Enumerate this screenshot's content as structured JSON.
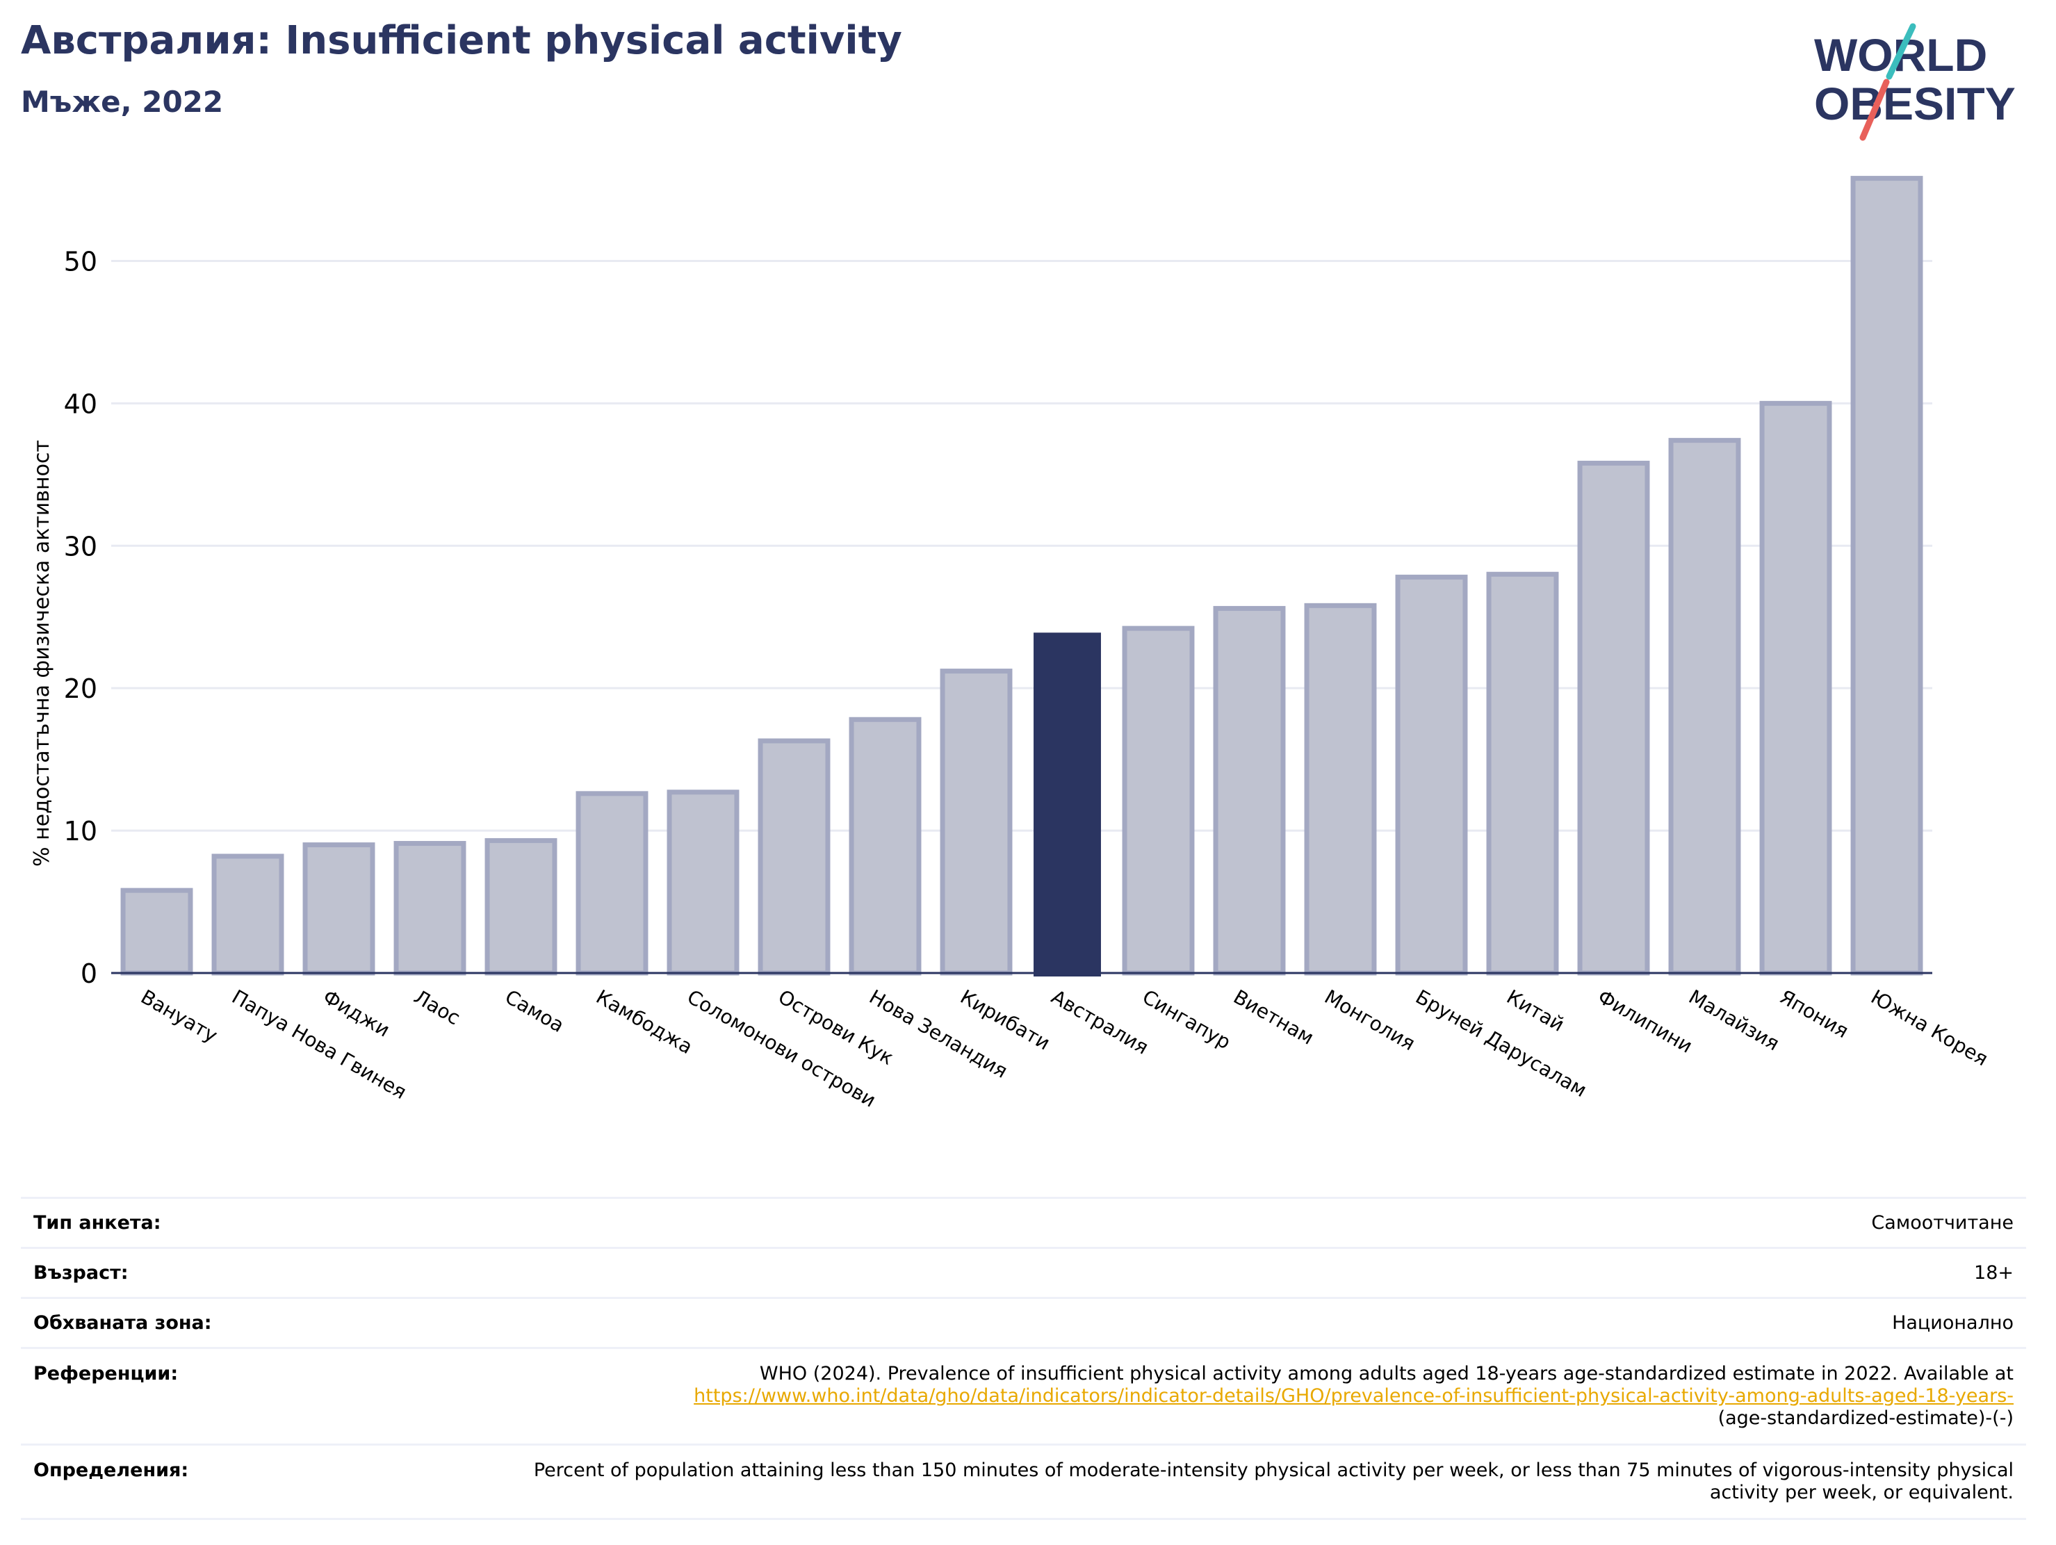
{
  "header": {
    "title": "Австралия: Insufficient physical activity",
    "subtitle": "Мъже, 2022"
  },
  "logo": {
    "line1": "WORLD",
    "line2": "OBESITY",
    "brand_color": "#2b3561",
    "accent_teal": "#3bbdbd",
    "accent_red": "#e8605a"
  },
  "chart_data": {
    "type": "bar",
    "title": "",
    "xlabel": "",
    "ylabel": "% недостатъчна физическа активност",
    "ylim": [
      0,
      57
    ],
    "yticks": [
      0,
      10,
      20,
      30,
      40,
      50
    ],
    "grid": true,
    "highlight": "Австралия",
    "colors": {
      "highlight": "#2b3561",
      "bar_fill": "#bfc2d0",
      "bar_edge": "#a3a8c2"
    },
    "categories": [
      "Вануату",
      "Папуа Нова Гвинея",
      "Фиджи",
      "Лаос",
      "Самоа",
      "Камбоджа",
      "Соломонови острови",
      "Острови Кук",
      "Нова Зеландия",
      "Кирибати",
      "Австралия",
      "Сингапур",
      "Виетнам",
      "Монголия",
      "Бруней Дарусалам",
      "Китай",
      "Филипини",
      "Малайзия",
      "Япония",
      "Южна Корея"
    ],
    "values": [
      5.8,
      8.2,
      9.0,
      9.1,
      9.3,
      12.6,
      12.7,
      16.3,
      17.8,
      21.2,
      23.9,
      24.2,
      25.6,
      25.8,
      27.8,
      28.0,
      35.8,
      37.4,
      40.0,
      55.8
    ]
  },
  "info": {
    "survey_label": "Тип анкета:",
    "survey_value": "Самоотчитане",
    "age_label": "Възраст:",
    "age_value": "18+",
    "area_label": "Обхваната зона:",
    "area_value": "Национално",
    "ref_label": "Референции:",
    "ref_text": "WHO (2024). Prevalence of insufficient physical activity among adults aged 18-years age-standardized estimate in 2022. Available at",
    "ref_link": "https://www.who.int/data/gho/data/indicators/indicator-details/GHO/prevalence-of-insufficient-physical-activity-among-adults-aged-18-years-",
    "ref_tail": "(age-standardized-estimate)-(-)",
    "def_label": "Определения:",
    "def_text": "Percent of population attaining less than 150 minutes of moderate-intensity physical activity per week, or less than 75 minutes of vigorous-intensity physical activity per week, or equivalent."
  }
}
